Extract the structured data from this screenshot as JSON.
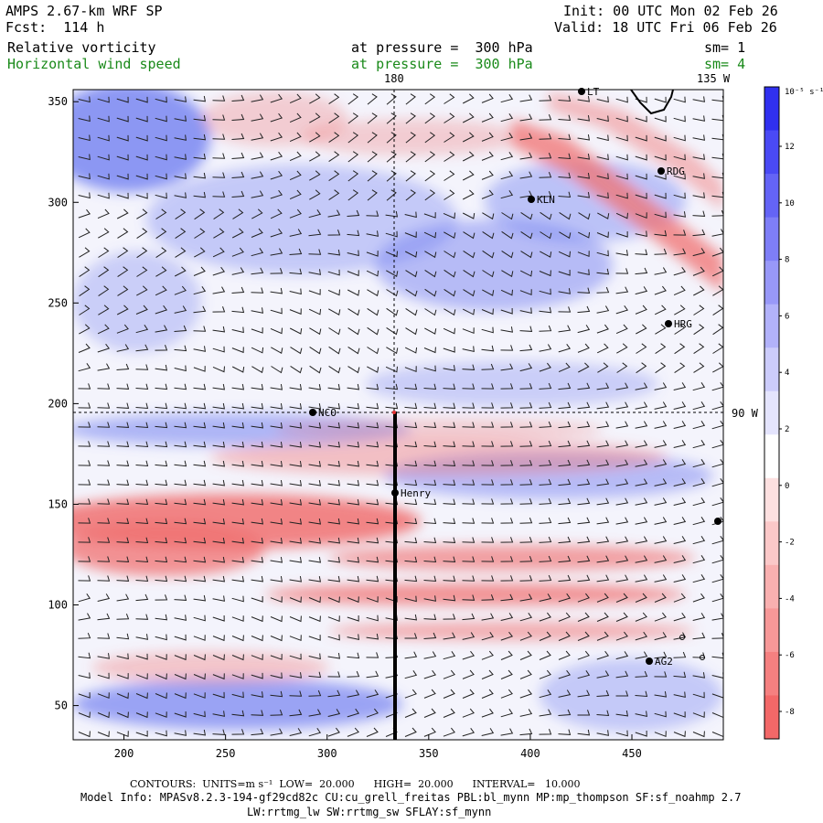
{
  "header": {
    "model_title": "AMPS 2.67-km WRF SP",
    "forecast": "Fcst:  114 h",
    "init": "Init: 00 UTC Mon 02 Feb 26",
    "valid": "Valid: 18 UTC Fri 06 Feb 26",
    "field1_name": "Relative vorticity",
    "field1_level": "at pressure =  300 hPa",
    "field1_smooth": "sm= 1",
    "field2_name": "Horizontal wind speed",
    "field2_level": "at pressure =  300 hPa",
    "field2_smooth": "sm= 4"
  },
  "map": {
    "x_ticks": [
      "200",
      "250",
      "300",
      "350",
      "400",
      "450"
    ],
    "y_ticks": [
      "350",
      "300",
      "250",
      "200",
      "150",
      "100",
      "50"
    ],
    "meridian_180_label": "180",
    "meridian_135w_label": "135 W",
    "meridian_90w_label": "90 W",
    "stations": [
      {
        "name": "NCO",
        "icon": "station-dot"
      },
      {
        "name": "KLN",
        "icon": "station-dot"
      },
      {
        "name": "RDG",
        "icon": "station-dot"
      },
      {
        "name": "HRG",
        "icon": "station-dot"
      },
      {
        "name": "Henry",
        "icon": "station-dot"
      },
      {
        "name": "AG2",
        "icon": "station-dot"
      },
      {
        "name": "LT",
        "icon": "station-dot"
      }
    ]
  },
  "colorbar": {
    "unit_label": "10⁻⁵ s⁻¹",
    "tick_labels": [
      "12",
      "10",
      "8",
      "6",
      "4",
      "2",
      "0",
      "-2",
      "-4",
      "-6",
      "-8"
    ],
    "colors_top_to_bottom": [
      "#3030f0",
      "#4a4af5",
      "#6464f6",
      "#7e7ef7",
      "#9898f8",
      "#b2b2fa",
      "#ccccfb",
      "#e4e4fd",
      "#ffffff",
      "#fde0e0",
      "#fbc8c8",
      "#f9b0b0",
      "#f79898",
      "#f58080",
      "#f36868"
    ]
  },
  "footer": {
    "contours_line": "CONTOURS:  UNITS=m s⁻¹  LOW=  20.000      HIGH=  20.000      INTERVAL=   10.000",
    "model_info_line": "Model Info: MPASv8.2.3-194-gf29cd82c CU:cu_grell_freitas PBL:bl_mynn MP:mp_thompson SF:sf_noahmp 2.7",
    "physics_line": "LW:rrtmg_lw SW:rrtmg_sw SFLAY:sf_mynn"
  },
  "colors": {
    "positive_vorticity": "#6a78f0",
    "negative_vorticity": "#f07070",
    "contour_text": "#1a8a1a"
  }
}
